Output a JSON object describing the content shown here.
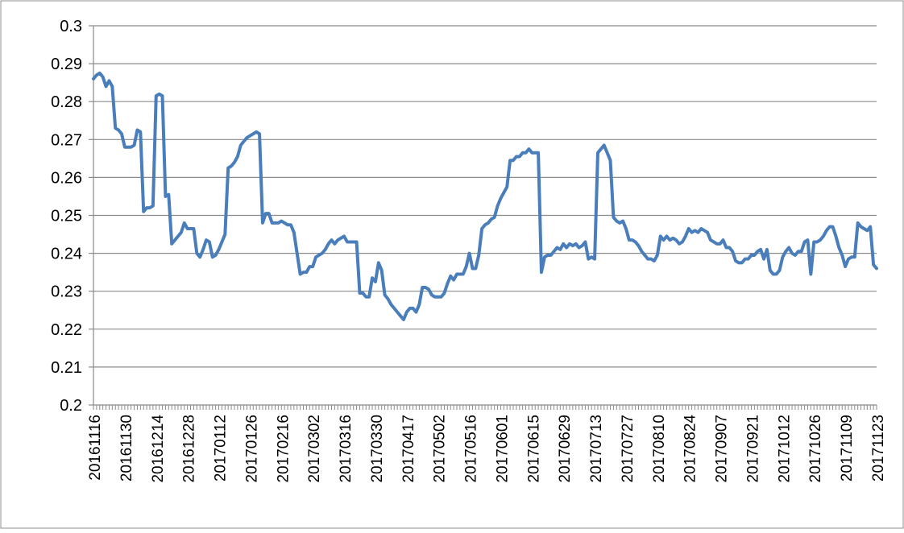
{
  "chart_data": {
    "type": "line",
    "title": "",
    "xlabel": "",
    "ylabel": "",
    "ylim": [
      0.2,
      0.3
    ],
    "y_ticks": [
      "0.3",
      "0.29",
      "0.28",
      "0.27",
      "0.26",
      "0.25",
      "0.24",
      "0.23",
      "0.22",
      "0.21",
      "0.2"
    ],
    "x_ticks": [
      "20161116",
      "20161130",
      "20161214",
      "20161228",
      "20170112",
      "20170126",
      "20170216",
      "20170302",
      "20170316",
      "20170330",
      "20170417",
      "20170502",
      "20170516",
      "20170601",
      "20170615",
      "20170629",
      "20170713",
      "20170727",
      "20170810",
      "20170824",
      "20170907",
      "20170921",
      "20171012",
      "20171026",
      "20171109",
      "20171123"
    ],
    "grid": true,
    "legend": "none",
    "series_color": "#4a7ebb",
    "x": [
      "20161116",
      "20161117",
      "20161118",
      "20161121",
      "20161122",
      "20161123",
      "20161124",
      "20161125",
      "20161128",
      "20161129",
      "20161130",
      "20161201",
      "20161202",
      "20161205",
      "20161206",
      "20161207",
      "20161208",
      "20161209",
      "20161212",
      "20161213",
      "20161214",
      "20161215",
      "20161216",
      "20161219",
      "20161220",
      "20161221",
      "20161222",
      "20161223",
      "20161226",
      "20161227",
      "20161228",
      "20161229",
      "20161230",
      "20170103",
      "20170104",
      "20170105",
      "20170106",
      "20170109",
      "20170110",
      "20170111",
      "20170112",
      "20170113",
      "20170116",
      "20170117",
      "20170118",
      "20170119",
      "20170120",
      "20170123",
      "20170124",
      "20170125",
      "20170126",
      "20170203",
      "20170206",
      "20170207",
      "20170208",
      "20170209",
      "20170210",
      "20170213",
      "20170214",
      "20170215",
      "20170216",
      "20170217",
      "20170220",
      "20170221",
      "20170222",
      "20170223",
      "20170224",
      "20170227",
      "20170228",
      "20170301",
      "20170302",
      "20170303",
      "20170306",
      "20170307",
      "20170308",
      "20170309",
      "20170310",
      "20170313",
      "20170314",
      "20170315",
      "20170316",
      "20170317",
      "20170320",
      "20170321",
      "20170322",
      "20170323",
      "20170324",
      "20170327",
      "20170328",
      "20170329",
      "20170330",
      "20170331",
      "20170405",
      "20170406",
      "20170407",
      "20170410",
      "20170411",
      "20170412",
      "20170413",
      "20170414",
      "20170417",
      "20170418",
      "20170419",
      "20170420",
      "20170421",
      "20170424",
      "20170425",
      "20170426",
      "20170427",
      "20170428",
      "20170502",
      "20170503",
      "20170504",
      "20170505",
      "20170508",
      "20170509",
      "20170510",
      "20170511",
      "20170512",
      "20170515",
      "20170516",
      "20170517",
      "20170518",
      "20170519",
      "20170522",
      "20170523",
      "20170524",
      "20170525",
      "20170526",
      "20170531",
      "20170601",
      "20170602",
      "20170605",
      "20170606",
      "20170607",
      "20170608",
      "20170609",
      "20170612",
      "20170613",
      "20170614",
      "20170615",
      "20170616",
      "20170619",
      "20170620",
      "20170621",
      "20170622",
      "20170623",
      "20170626",
      "20170627",
      "20170628",
      "20170629",
      "20170630",
      "20170703",
      "20170704",
      "20170705",
      "20170706",
      "20170707",
      "20170710",
      "20170711",
      "20170712",
      "20170713",
      "20170714",
      "20170717",
      "20170718",
      "20170719",
      "20170720",
      "20170721",
      "20170724",
      "20170725",
      "20170726",
      "20170727",
      "20170728",
      "20170731",
      "20170801",
      "20170802",
      "20170803",
      "20170804",
      "20170807",
      "20170808",
      "20170809",
      "20170810",
      "20170811",
      "20170814",
      "20170815",
      "20170816",
      "20170817",
      "20170818",
      "20170821",
      "20170822",
      "20170823",
      "20170824",
      "20170825",
      "20170828",
      "20170829",
      "20170830",
      "20170831",
      "20170901",
      "20170904",
      "20170905",
      "20170906",
      "20170907",
      "20170908",
      "20170911",
      "20170912",
      "20170913",
      "20170914",
      "20170915",
      "20170918",
      "20170919",
      "20170920",
      "20170921",
      "20170922",
      "20170925",
      "20170926",
      "20170927",
      "20170928",
      "20170929",
      "20171009",
      "20171010",
      "20171011",
      "20171012",
      "20171013",
      "20171016",
      "20171017",
      "20171018",
      "20171019",
      "20171020",
      "20171023",
      "20171024",
      "20171025",
      "20171026",
      "20171027",
      "20171030",
      "20171031",
      "20171101",
      "20171102",
      "20171103",
      "20171106",
      "20171107",
      "20171108",
      "20171109",
      "20171110",
      "20171113",
      "20171114",
      "20171115",
      "20171116",
      "20171117",
      "20171120",
      "20171121",
      "20171122",
      "20171123"
    ],
    "series": [
      {
        "values": [
          0.286,
          0.287,
          0.2875,
          0.2865,
          0.284,
          0.2855,
          0.284,
          0.273,
          0.2725,
          0.2715,
          0.268,
          0.268,
          0.268,
          0.2685,
          0.2725,
          0.272,
          0.251,
          0.252,
          0.252,
          0.2525,
          0.2815,
          0.282,
          0.2815,
          0.255,
          0.2555,
          0.2425,
          0.2435,
          0.2445,
          0.2455,
          0.248,
          0.2465,
          0.2465,
          0.2465,
          0.24,
          0.239,
          0.241,
          0.2435,
          0.243,
          0.239,
          0.2395,
          0.241,
          0.243,
          0.245,
          0.2625,
          0.263,
          0.264,
          0.2655,
          0.2685,
          0.2695,
          0.2705,
          0.271,
          0.2715,
          0.272,
          0.2715,
          0.248,
          0.2505,
          0.2505,
          0.248,
          0.248,
          0.248,
          0.2485,
          0.248,
          0.2475,
          0.2475,
          0.2455,
          0.24,
          0.2345,
          0.235,
          0.235,
          0.2365,
          0.2365,
          0.239,
          0.2395,
          0.24,
          0.241,
          0.2425,
          0.2435,
          0.2425,
          0.2435,
          0.244,
          0.2445,
          0.243,
          0.243,
          0.243,
          0.243,
          0.2295,
          0.2295,
          0.2285,
          0.2285,
          0.2335,
          0.2325,
          0.2375,
          0.2355,
          0.229,
          0.228,
          0.2265,
          0.2255,
          0.2245,
          0.2235,
          0.2225,
          0.2245,
          0.2255,
          0.2255,
          0.2245,
          0.2265,
          0.231,
          0.231,
          0.2305,
          0.229,
          0.2285,
          0.2285,
          0.2285,
          0.2295,
          0.232,
          0.234,
          0.233,
          0.2345,
          0.2345,
          0.2345,
          0.2365,
          0.24,
          0.236,
          0.236,
          0.2395,
          0.2465,
          0.2475,
          0.248,
          0.249,
          0.2495,
          0.2525,
          0.2545,
          0.256,
          0.2575,
          0.2645,
          0.2645,
          0.2655,
          0.2655,
          0.2665,
          0.2665,
          0.2675,
          0.2665,
          0.2665,
          0.2665,
          0.235,
          0.239,
          0.2395,
          0.2395,
          0.2405,
          0.2415,
          0.241,
          0.2425,
          0.2415,
          0.2425,
          0.242,
          0.2425,
          0.2415,
          0.242,
          0.243,
          0.2385,
          0.239,
          0.2385,
          0.2665,
          0.2675,
          0.2685,
          0.2665,
          0.2645,
          0.2495,
          0.2485,
          0.248,
          0.2485,
          0.2465,
          0.2435,
          0.2435,
          0.243,
          0.242,
          0.2405,
          0.2395,
          0.2385,
          0.2385,
          0.238,
          0.2395,
          0.2445,
          0.2435,
          0.2445,
          0.2435,
          0.244,
          0.2435,
          0.2425,
          0.243,
          0.2445,
          0.2465,
          0.2455,
          0.246,
          0.2455,
          0.2465,
          0.246,
          0.2455,
          0.2435,
          0.243,
          0.2425,
          0.2425,
          0.2435,
          0.2415,
          0.2415,
          0.2405,
          0.238,
          0.2375,
          0.2375,
          0.2385,
          0.2385,
          0.2395,
          0.2395,
          0.2405,
          0.241,
          0.2385,
          0.241,
          0.2355,
          0.2345,
          0.2345,
          0.2355,
          0.239,
          0.2405,
          0.2415,
          0.24,
          0.2395,
          0.2405,
          0.2405,
          0.243,
          0.2435,
          0.2345,
          0.243,
          0.243,
          0.2435,
          0.2445,
          0.246,
          0.247,
          0.247,
          0.2445,
          0.2415,
          0.2395,
          0.2365,
          0.2385,
          0.239,
          0.239,
          0.248,
          0.247,
          0.2465,
          0.246,
          0.247,
          0.237,
          0.236
        ]
      }
    ]
  }
}
